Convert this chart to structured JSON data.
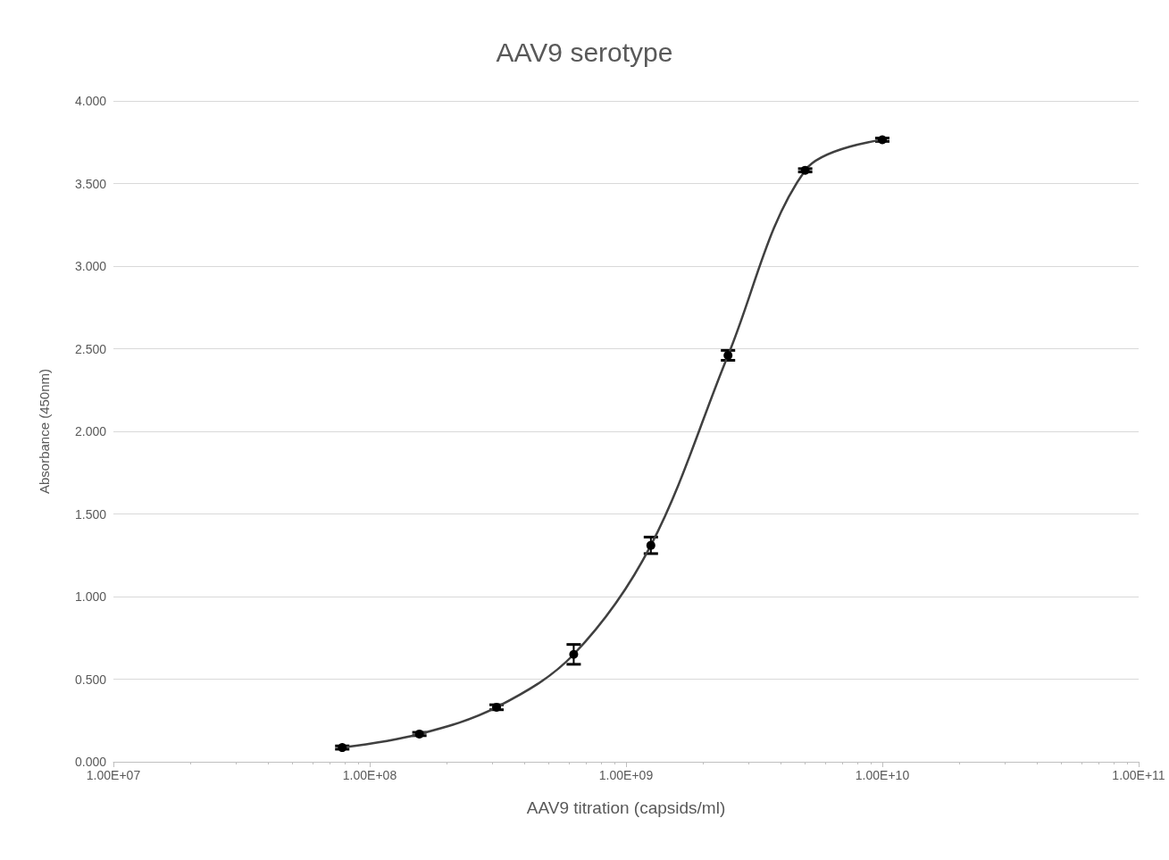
{
  "chart_data": {
    "type": "line",
    "title": "AAV9 serotype",
    "xlabel": "AAV9 titration (capsids/ml)",
    "ylabel": "Absorbance (450nm)",
    "x": [
      78125000,
      156250000,
      312500000,
      625000000,
      1250000000,
      2500000000,
      5000000000,
      10000000000
    ],
    "series": [
      {
        "color": "#404040",
        "values": [
          0.086,
          0.168,
          0.33,
          0.65,
          1.31,
          2.46,
          3.58,
          3.765
        ],
        "errors": [
          0.01,
          0.01,
          0.015,
          0.06,
          0.05,
          0.03,
          0.01,
          0.01
        ]
      }
    ],
    "log": "x",
    "marker": "circle",
    "line_style": "solid",
    "grid": "y",
    "xlim": [
      10000000,
      100000000000
    ],
    "xticks": [
      {
        "value": 10000000,
        "label": "1.00E+07"
      },
      {
        "value": 100000000,
        "label": "1.00E+08"
      },
      {
        "value": 1000000000,
        "label": "1.00E+09"
      },
      {
        "value": 10000000000,
        "label": "1.00E+10"
      },
      {
        "value": 100000000000,
        "label": "1.00E+11"
      }
    ],
    "ylim": [
      0,
      4
    ],
    "yticks": [
      {
        "value": 0,
        "label": "0.000"
      },
      {
        "value": 0.5,
        "label": "0.500"
      },
      {
        "value": 1,
        "label": "1.000"
      },
      {
        "value": 1.5,
        "label": "1.500"
      },
      {
        "value": 2,
        "label": "2.000"
      },
      {
        "value": 2.5,
        "label": "2.500"
      },
      {
        "value": 3,
        "label": "3.000"
      },
      {
        "value": 3.5,
        "label": "3.500"
      },
      {
        "value": 4,
        "label": "4.000"
      }
    ]
  }
}
